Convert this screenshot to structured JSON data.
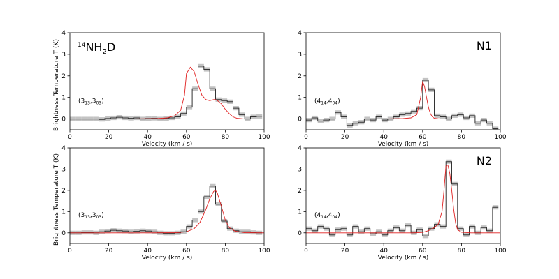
{
  "figure": {
    "shared_ylabel": "Brightness Temperature T (K)"
  },
  "chart_data": [
    {
      "type": "line",
      "panel": "top-left",
      "corner_label": "14NH2D",
      "corner_label_parts": {
        "sup": "14",
        "base1": "NH",
        "sub": "2",
        "base2": "D"
      },
      "transition_label": "(313,303)",
      "transition_parts": {
        "j1": "3",
        "k1": "13",
        "j2": "3",
        "k2": "03"
      },
      "xlabel": "Velocity (km / s)",
      "ylabel": "Brightness Temperature T (K)",
      "xlim": [
        0,
        100
      ],
      "ylim": [
        -0.5,
        4
      ],
      "xticks": [
        0,
        20,
        40,
        60,
        80,
        100
      ],
      "yticks": [
        0,
        1,
        2,
        3,
        4
      ],
      "series": [
        {
          "name": "observed",
          "style": "step",
          "x": [
            0,
            3,
            6,
            9,
            12,
            15,
            18,
            21,
            24,
            27,
            30,
            33,
            36,
            39,
            42,
            45,
            48,
            51,
            54,
            57,
            60,
            63,
            66,
            69,
            72,
            75,
            78,
            81,
            84,
            87,
            90,
            93,
            96
          ],
          "y": [
            0.0,
            0.0,
            0.0,
            0.0,
            0.0,
            -0.02,
            0.02,
            0.05,
            0.08,
            0.05,
            0.03,
            0.05,
            0.0,
            0.02,
            0.03,
            0.0,
            0.02,
            0.05,
            0.1,
            0.25,
            0.55,
            1.4,
            2.45,
            2.3,
            1.4,
            0.9,
            0.85,
            0.8,
            0.5,
            0.2,
            0.0,
            0.1,
            0.12
          ]
        },
        {
          "name": "fit",
          "style": "line",
          "x": [
            0,
            10,
            20,
            30,
            40,
            45,
            50,
            54,
            57,
            59,
            60,
            62,
            64,
            66,
            68,
            70,
            72,
            74,
            75,
            76,
            78,
            80,
            82,
            84,
            86,
            90,
            100
          ],
          "y": [
            0.0,
            0.0,
            0.0,
            0.0,
            0.01,
            0.02,
            0.05,
            0.15,
            0.4,
            1.1,
            2.1,
            2.4,
            2.2,
            1.6,
            1.1,
            0.9,
            0.85,
            0.9,
            0.9,
            0.85,
            0.7,
            0.45,
            0.25,
            0.1,
            0.03,
            0.0,
            0.0
          ]
        }
      ]
    },
    {
      "type": "line",
      "panel": "top-right",
      "corner_label": "N1",
      "transition_label": "(414,404)",
      "transition_parts": {
        "j1": "4",
        "k1": "14",
        "j2": "4",
        "k2": "04"
      },
      "xlabel": "Velocity (km / s)",
      "ylabel": "",
      "xlim": [
        0,
        100
      ],
      "ylim": [
        -0.5,
        4
      ],
      "xticks": [
        0,
        20,
        40,
        60,
        80,
        100
      ],
      "yticks": [
        0,
        1,
        2,
        3,
        4
      ],
      "series": [
        {
          "name": "observed",
          "style": "step",
          "x": [
            0,
            3,
            6,
            9,
            12,
            15,
            18,
            21,
            24,
            27,
            30,
            33,
            36,
            39,
            42,
            45,
            48,
            51,
            54,
            57,
            60,
            63,
            66,
            69,
            72,
            75,
            78,
            81,
            84,
            87,
            90,
            93,
            96
          ],
          "y": [
            -0.05,
            0.05,
            -0.1,
            -0.05,
            0.0,
            0.3,
            0.1,
            -0.3,
            -0.2,
            -0.15,
            0.0,
            -0.05,
            0.1,
            -0.05,
            0.0,
            0.1,
            0.2,
            0.25,
            0.35,
            0.5,
            1.8,
            1.35,
            0.15,
            0.1,
            0.0,
            0.15,
            0.2,
            0.05,
            0.15,
            -0.2,
            -0.05,
            -0.2,
            -0.45
          ]
        },
        {
          "name": "fit",
          "style": "line",
          "x": [
            0,
            20,
            40,
            50,
            54,
            57,
            59,
            60,
            61,
            62,
            63,
            64,
            65,
            66,
            68,
            70,
            80,
            100
          ],
          "y": [
            0.0,
            0.0,
            0.0,
            0.02,
            0.05,
            0.2,
            1.0,
            1.75,
            1.5,
            1.0,
            0.55,
            0.25,
            0.1,
            0.03,
            0.01,
            0.0,
            0.0,
            0.0
          ]
        }
      ]
    },
    {
      "type": "line",
      "panel": "bottom-left",
      "corner_label": "",
      "transition_label": "(313,303)",
      "transition_parts": {
        "j1": "3",
        "k1": "13",
        "j2": "3",
        "k2": "03"
      },
      "xlabel": "Velocity (km / s)",
      "ylabel": "Brightness Temperature T (K)",
      "xlim": [
        0,
        100
      ],
      "ylim": [
        -0.5,
        4
      ],
      "xticks": [
        0,
        20,
        40,
        60,
        80,
        100
      ],
      "yticks": [
        0,
        1,
        2,
        3,
        4
      ],
      "series": [
        {
          "name": "observed",
          "style": "step",
          "x": [
            0,
            3,
            6,
            9,
            12,
            15,
            18,
            21,
            24,
            27,
            30,
            33,
            36,
            39,
            42,
            45,
            48,
            51,
            54,
            57,
            60,
            63,
            66,
            69,
            72,
            75,
            78,
            81,
            84,
            87,
            90,
            93,
            96
          ],
          "y": [
            0.0,
            0.0,
            0.02,
            0.02,
            0.0,
            0.05,
            0.08,
            0.12,
            0.1,
            0.08,
            0.05,
            0.07,
            0.1,
            0.08,
            0.05,
            0.0,
            -0.02,
            -0.02,
            0.0,
            0.05,
            0.3,
            0.6,
            1.0,
            1.7,
            2.2,
            1.35,
            0.55,
            0.2,
            0.1,
            0.05,
            0.05,
            0.02,
            0.0
          ]
        },
        {
          "name": "fit",
          "style": "line",
          "x": [
            0,
            20,
            40,
            55,
            60,
            64,
            67,
            70,
            72,
            74,
            75,
            76,
            78,
            80,
            82,
            85,
            90,
            100
          ],
          "y": [
            0.0,
            0.0,
            0.0,
            0.01,
            0.05,
            0.2,
            0.5,
            1.1,
            1.6,
            1.95,
            2.0,
            1.85,
            1.25,
            0.6,
            0.25,
            0.08,
            0.01,
            0.0
          ]
        }
      ]
    },
    {
      "type": "line",
      "panel": "bottom-right",
      "corner_label": "N2",
      "transition_label": "(414,404)",
      "transition_parts": {
        "j1": "4",
        "k1": "14",
        "j2": "4",
        "k2": "04"
      },
      "xlabel": "Velocity (km / s)",
      "ylabel": "",
      "xlim": [
        0,
        100
      ],
      "ylim": [
        -0.5,
        4
      ],
      "xticks": [
        0,
        20,
        40,
        60,
        80,
        100
      ],
      "yticks": [
        0,
        1,
        2,
        3,
        4
      ],
      "series": [
        {
          "name": "observed",
          "style": "step",
          "x": [
            0,
            3,
            6,
            9,
            12,
            15,
            18,
            21,
            24,
            27,
            30,
            33,
            36,
            39,
            42,
            45,
            48,
            51,
            54,
            57,
            60,
            63,
            66,
            69,
            72,
            75,
            78,
            81,
            84,
            87,
            90,
            93,
            96
          ],
          "y": [
            0.2,
            0.1,
            0.3,
            0.2,
            -0.1,
            0.15,
            0.2,
            -0.1,
            0.3,
            0.05,
            0.2,
            -0.05,
            0.05,
            -0.1,
            0.1,
            0.25,
            0.1,
            0.35,
            0.0,
            0.15,
            -0.15,
            0.2,
            0.4,
            0.3,
            3.35,
            2.3,
            0.2,
            -0.1,
            0.3,
            0.0,
            0.25,
            0.1,
            1.2
          ]
        },
        {
          "name": "fit",
          "style": "line",
          "x": [
            0,
            20,
            40,
            55,
            60,
            63,
            66,
            68,
            70,
            71,
            72,
            73,
            74,
            75,
            76,
            77,
            78,
            80,
            85,
            100
          ],
          "y": [
            0.0,
            0.0,
            0.0,
            0.0,
            0.02,
            0.1,
            0.25,
            0.4,
            1.0,
            2.0,
            3.15,
            3.2,
            2.8,
            2.0,
            1.1,
            0.45,
            0.15,
            0.03,
            0.0,
            0.0
          ]
        }
      ]
    }
  ]
}
